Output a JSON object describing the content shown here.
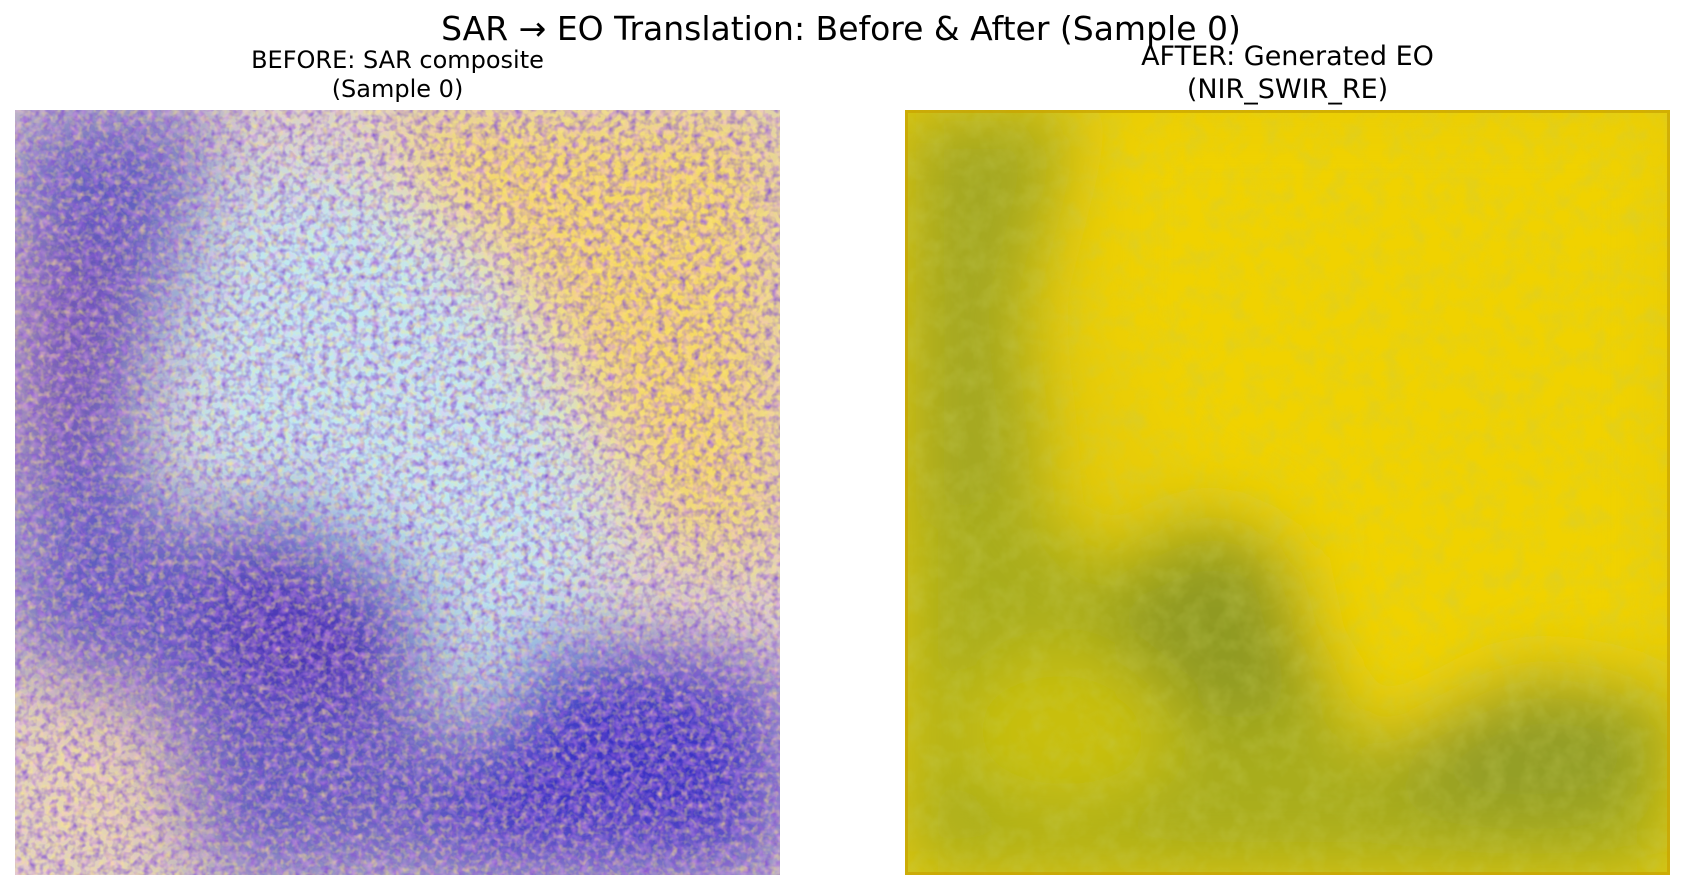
{
  "figure": {
    "suptitle": "SAR → EO Translation: Before & After (Sample 0)"
  },
  "panels": [
    {
      "title_line1": "BEFORE: SAR composite",
      "title_line2": "(Sample 0)",
      "image": "sar-composite-image",
      "colors": {
        "dark_blue": "#2f1fb8",
        "purple": "#6a2a9c",
        "blue": "#2a86e8",
        "light_cyan": "#bfe9f2",
        "cream": "#e9dcb8",
        "yellow": "#ffd500",
        "orange": "#f2b23a"
      }
    },
    {
      "title_line1": "AFTER: Generated EO",
      "title_line2": "(NIR_SWIR_RE)",
      "image": "generated-eo-image",
      "colors": {
        "olive": "#a9ad1c",
        "dark_olive": "#8f9a22",
        "yellow": "#e9cc06",
        "bright_yellow": "#f2d300",
        "border": "#c9a300"
      }
    }
  ]
}
